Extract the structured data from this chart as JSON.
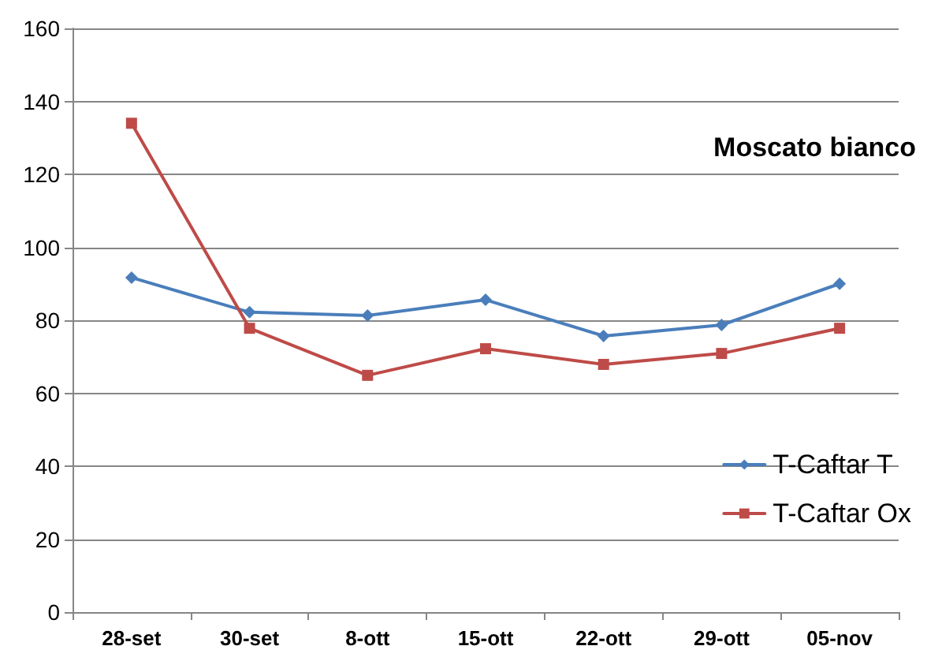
{
  "chart_data": {
    "type": "line",
    "title": "Moscato bianco",
    "categories": [
      "28-set",
      "30-set",
      "8-ott",
      "15-ott",
      "22-ott",
      "29-ott",
      "05-nov"
    ],
    "series": [
      {
        "name": "T-Caftar T",
        "color": "#4a7ebb",
        "marker": "diamond",
        "values": [
          91.7,
          82.2,
          81.3,
          85.6,
          75.7,
          78.7,
          90
        ]
      },
      {
        "name": "T-Caftar Ox",
        "color": "#be4b48",
        "marker": "square",
        "values": [
          134,
          77.8,
          64.9,
          72.2,
          67.9,
          70.9,
          77.8
        ]
      }
    ],
    "ylim": [
      0,
      160
    ],
    "yticks": [
      0,
      20,
      40,
      60,
      80,
      100,
      120,
      140,
      160
    ],
    "grid": "y",
    "legend": "bottom right",
    "line_style": "solid"
  }
}
